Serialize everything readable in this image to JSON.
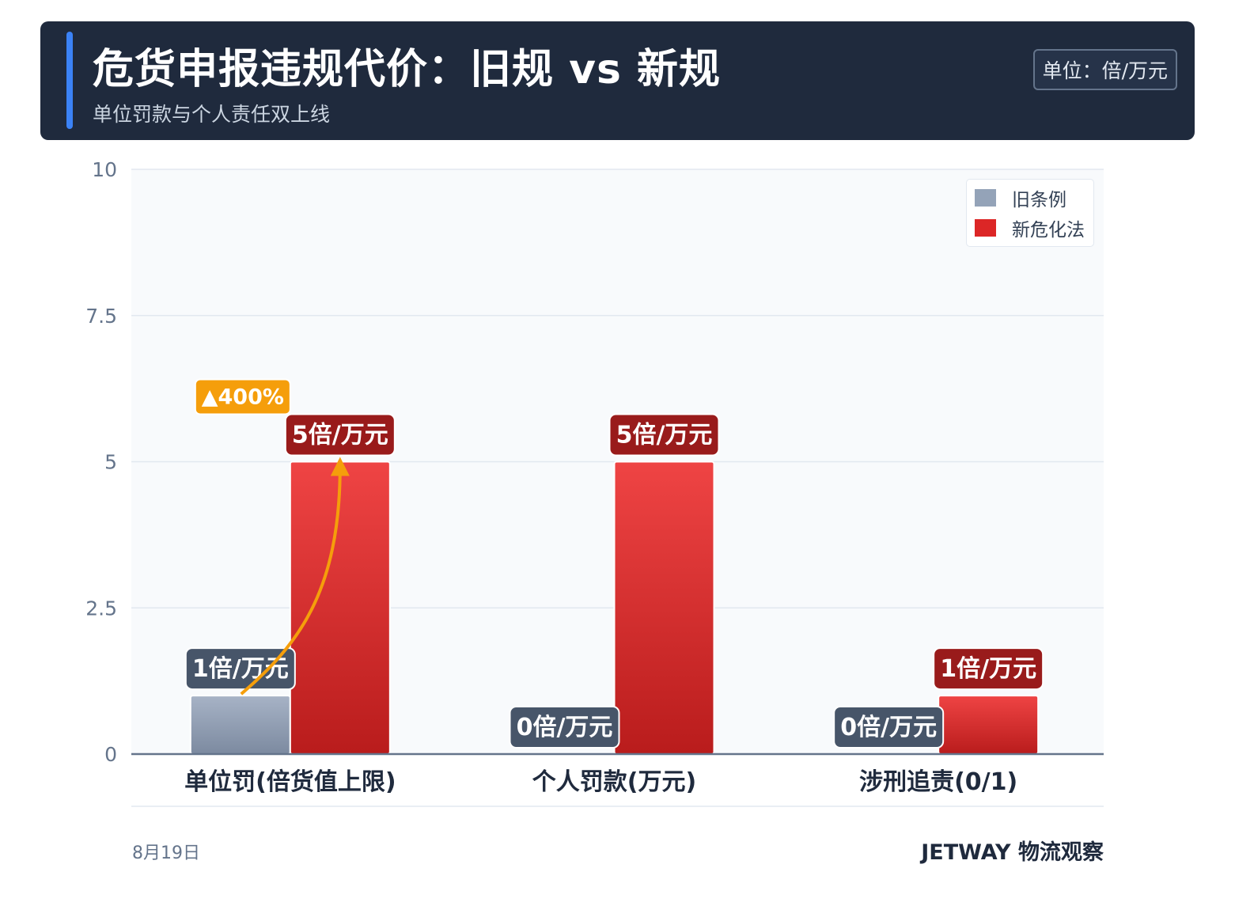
{
  "header": {
    "title": "危货申报违规代价：旧规 vs 新规",
    "subtitle": "单位罚款与个人责任双上线",
    "unit_badge": "单位：倍/万元"
  },
  "footer": {
    "date": "8月19日",
    "brand": "JETWAY 物流观察"
  },
  "colors": {
    "header_bg": "#1f2a3d",
    "accent": "#3b82f6",
    "old_series": "#94a3b8",
    "new_series": "#dc2626",
    "old_label_bg": "#475569",
    "new_label_bg": "#991b1b",
    "annotation": "#f59e0b"
  },
  "chart_data": {
    "type": "bar",
    "categories": [
      "单位罚(倍货值上限)",
      "个人罚款(万元)",
      "涉刑追责(0/1)"
    ],
    "series": [
      {
        "name": "旧条例",
        "values": [
          1,
          0,
          0
        ],
        "labels": [
          "1倍/万元",
          "0倍/万元",
          "0倍/万元"
        ]
      },
      {
        "name": "新危化法",
        "values": [
          5,
          5,
          1
        ],
        "labels": [
          "5倍/万元",
          "5倍/万元",
          "1倍/万元"
        ]
      }
    ],
    "ylim": [
      0,
      10
    ],
    "yticks": [
      "0",
      "2.5",
      "5",
      "7.5",
      "10"
    ],
    "grid": true,
    "legend_position": "top-right",
    "annotation": {
      "text": "▲400%",
      "category_index": 0
    }
  }
}
